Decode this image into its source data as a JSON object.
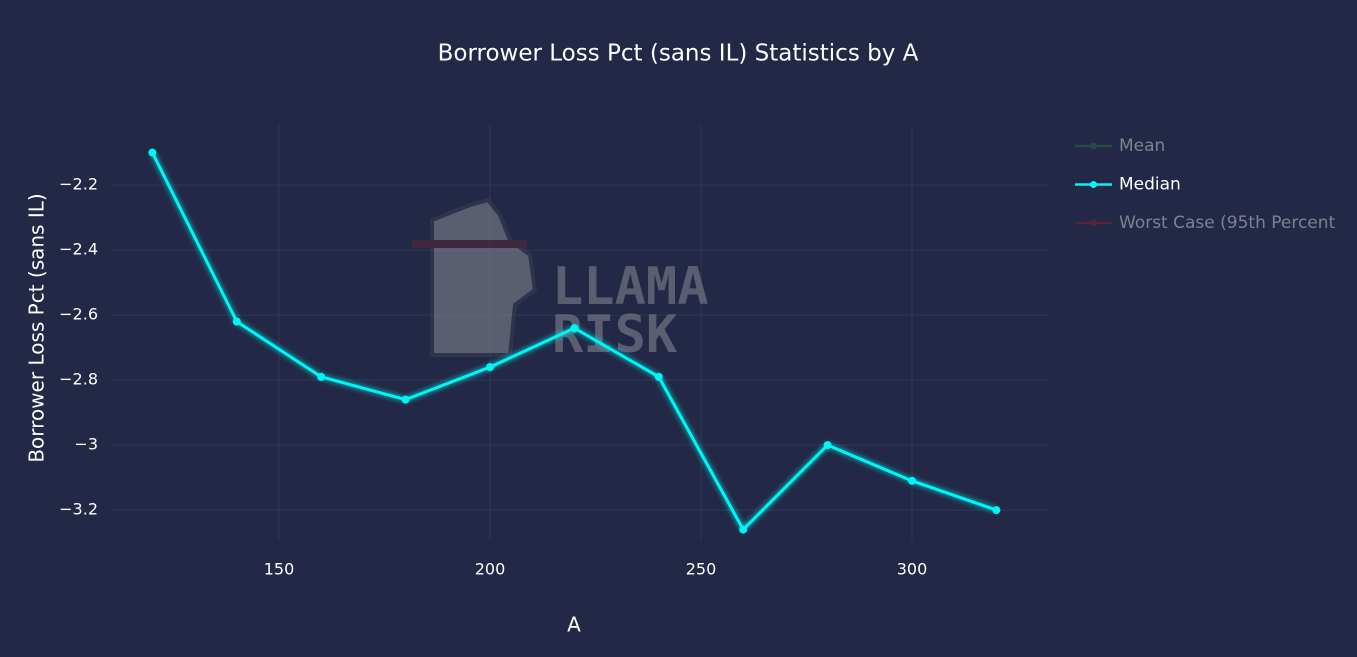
{
  "chart_data": {
    "type": "line",
    "title": "Borrower Loss Pct (sans IL) Statistics by A",
    "x_label": "A",
    "y_label": "Borrower Loss Pct (sans IL)",
    "watermark": [
      "LLAMA",
      "RISK"
    ],
    "x": [
      120,
      140,
      160,
      180,
      200,
      220,
      240,
      260,
      280,
      300,
      320
    ],
    "series": [
      {
        "name": "Mean",
        "color": "#2f6e3e",
        "visible": "legendonly"
      },
      {
        "name": "Median",
        "color": "#00f5f5",
        "values": [
          -2.1,
          -2.62,
          -2.79,
          -2.86,
          -2.76,
          -2.64,
          -2.79,
          -3.26,
          -3.0,
          -3.11,
          -3.2
        ]
      },
      {
        "name": "Worst Case (95th Percent",
        "color": "#8a1f35",
        "visible": "legendonly"
      }
    ],
    "xlim": [
      110,
      330
    ],
    "xticks": [
      150,
      200,
      250,
      300
    ],
    "ylim": [
      -3.292,
      -2.015
    ],
    "yticks": [
      {
        "value": -2.2,
        "label": "−2.2"
      },
      {
        "value": -2.4,
        "label": "−2.4"
      },
      {
        "value": -2.6,
        "label": "−2.6"
      },
      {
        "value": -2.8,
        "label": "−2.8"
      },
      {
        "value": -3.0,
        "label": "−3"
      },
      {
        "value": -3.2,
        "label": "−3.2"
      }
    ],
    "grid": true
  }
}
